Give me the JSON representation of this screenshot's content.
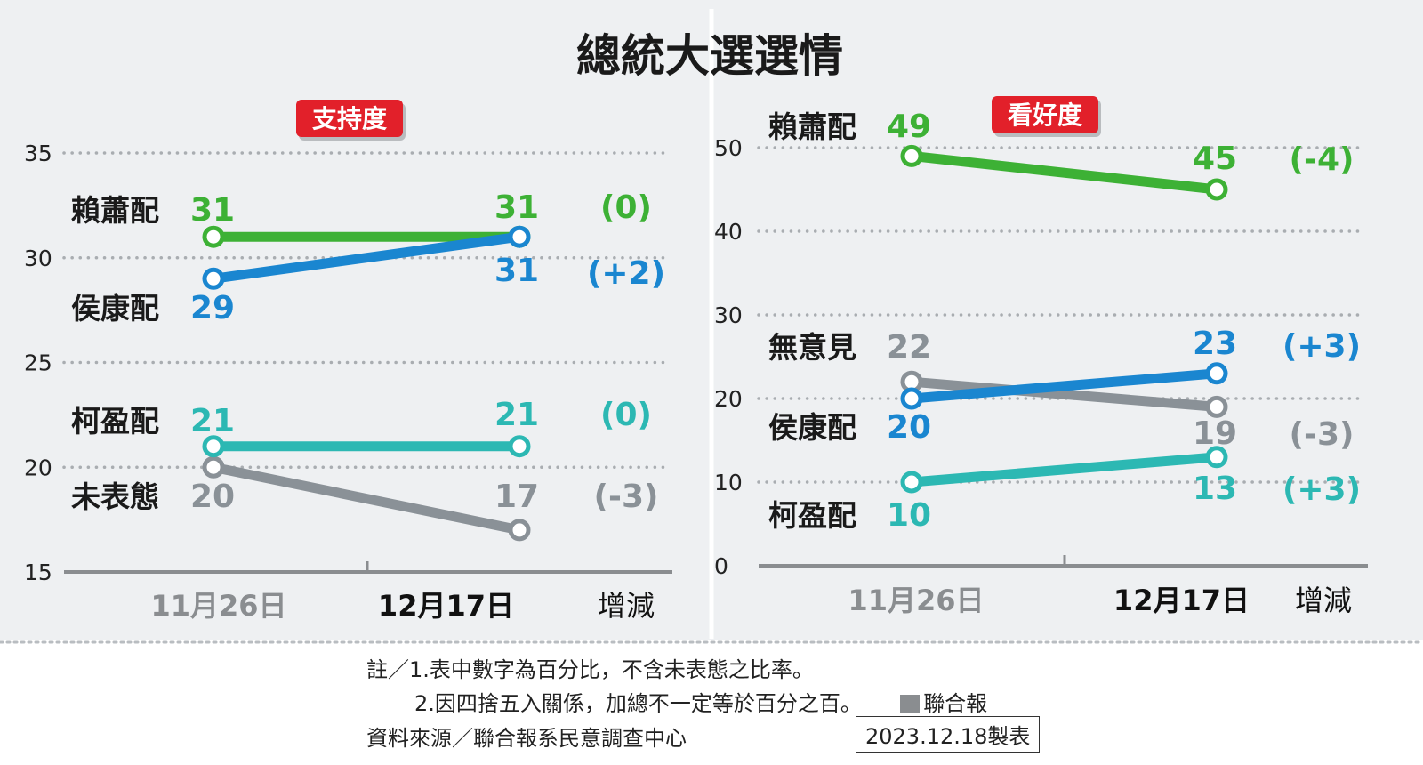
{
  "title": "總統大選選情",
  "colors": {
    "panel_bg": "#eef0f2",
    "green": "#3db135",
    "blue": "#1a86d0",
    "teal": "#2cb8b3",
    "gray": "#8a9197",
    "badge": "#e2202a",
    "grid": "#a9adb1",
    "axis": "#8a8d90"
  },
  "chart_data": [
    {
      "type": "line",
      "badge": "支持度",
      "categories": [
        "11月26日",
        "12月17日"
      ],
      "change_header": "增減",
      "ylim": [
        15,
        35
      ],
      "yticks": [
        "35",
        "30",
        "25",
        "20",
        "15"
      ],
      "series": [
        {
          "name": "賴蕭配",
          "color": "green",
          "values": [
            31,
            31
          ],
          "labels": [
            "31",
            "31"
          ],
          "change": "(0)"
        },
        {
          "name": "侯康配",
          "color": "blue",
          "values": [
            29,
            31
          ],
          "labels": [
            "29",
            "31"
          ],
          "change": "(+2)"
        },
        {
          "name": "柯盈配",
          "color": "teal",
          "values": [
            21,
            21
          ],
          "labels": [
            "21",
            "21"
          ],
          "change": "(0)"
        },
        {
          "name": "未表態",
          "color": "gray",
          "values": [
            20,
            17
          ],
          "labels": [
            "20",
            "17"
          ],
          "change": "(-3)"
        }
      ]
    },
    {
      "type": "line",
      "badge": "看好度",
      "categories": [
        "11月26日",
        "12月17日"
      ],
      "change_header": "增減",
      "ylim": [
        0,
        50
      ],
      "yticks": [
        "50",
        "40",
        "30",
        "20",
        "10",
        "0"
      ],
      "series": [
        {
          "name": "賴蕭配",
          "color": "green",
          "values": [
            49,
            45
          ],
          "labels": [
            "49",
            "45"
          ],
          "change": "(-4)"
        },
        {
          "name": "無意見",
          "color": "gray",
          "values": [
            22,
            19
          ],
          "labels": [
            "22",
            "19"
          ],
          "change": "(-3)"
        },
        {
          "name": "侯康配",
          "color": "blue",
          "values": [
            20,
            23
          ],
          "labels": [
            "20",
            "23"
          ],
          "change": "(+3)"
        },
        {
          "name": "柯盈配",
          "color": "teal",
          "values": [
            10,
            13
          ],
          "labels": [
            "10",
            "13"
          ],
          "change": "(+3)"
        }
      ]
    }
  ],
  "footer": {
    "note1": "註／1.表中數字為百分比，不含未表態之比率。",
    "note2": "2.因四捨五入關係，加總不一定等於百分之百。",
    "brand": "聯合報",
    "source": "資料來源／聯合報系民意調查中心",
    "date": "2023.12.18製表"
  }
}
